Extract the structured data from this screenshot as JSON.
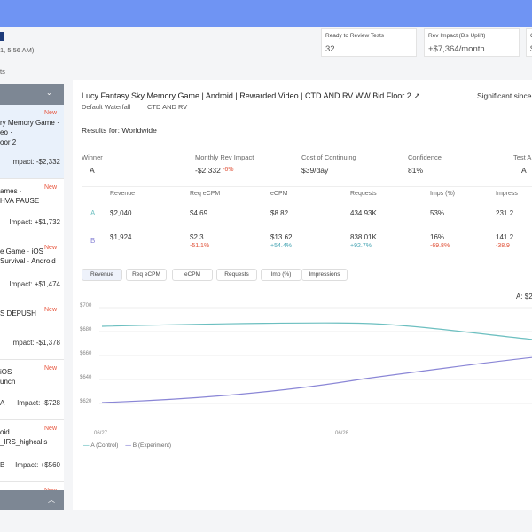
{
  "header": {
    "date": "1, 5:56 AM)",
    "tab": "ts"
  },
  "stats": [
    {
      "label": "Ready to Review Tests",
      "value": "32"
    },
    {
      "label": "Rev Impact (B's Uplift)",
      "value": "+$7,364/month"
    },
    {
      "label": "C",
      "value": "$"
    }
  ],
  "sidebar": {
    "items": [
      {
        "lines": [
          "ry Memory Game ·",
          "eo ·",
          "oor 2"
        ],
        "badge": "New",
        "impact": "Impact: -$2,332"
      },
      {
        "lines": [
          "ames ·",
          "HVA PAUSE"
        ],
        "badge": "New",
        "impact": "Impact: +$1,732"
      },
      {
        "lines": [
          "e Game · iOS",
          "Survival · Android"
        ],
        "badge": "New",
        "impact": "Impact: +$1,474"
      },
      {
        "lines": [
          "S DEPUSH"
        ],
        "badge": "New",
        "impact": "Impact: -$1,378"
      },
      {
        "lines": [
          "iOS",
          "unch"
        ],
        "badge": "New",
        "impact": "Impact: -$728",
        "prefix": "A"
      },
      {
        "lines": [
          "oid",
          "_IRS_highcalls"
        ],
        "badge": "New",
        "impact": "Impact: +$560",
        "prefix": "B"
      },
      {
        "lines": [],
        "badge": "New",
        "impact": null
      }
    ]
  },
  "main": {
    "title": "Lucy  Fantasy Sky Memory Game | Android | Rewarded Video | CTD AND RV WW Bid Floor 2",
    "significance": "Significant since",
    "tags": [
      "Default Waterfall",
      "CTD AND RV"
    ],
    "results_for": "Results for: Worldwide",
    "metrics": [
      {
        "label": "Winner",
        "value": "A"
      },
      {
        "label": "Monthly Rev Impact",
        "value": "-$2,332",
        "delta": "-6%"
      },
      {
        "label": "Cost of Continuing",
        "value": "$39/day"
      },
      {
        "label": "Confidence",
        "value": "81%"
      },
      {
        "label": "Test A",
        "value": "A"
      }
    ],
    "table": {
      "columns": [
        "Revenue",
        "Req eCPM",
        "eCPM",
        "Requests",
        "Imps (%)",
        "Impress"
      ],
      "rows": [
        {
          "variant": "A",
          "values": [
            "$2,040",
            "$4.69",
            "$8.82",
            "434.93K",
            "53%",
            "231.2"
          ],
          "deltas": []
        },
        {
          "variant": "B",
          "values": [
            "$1,924",
            "$2.3",
            "$13.62",
            "838.01K",
            "16%",
            "141.2"
          ],
          "deltas": [
            "",
            "-51.1%",
            "+54.4%",
            "+92.7%",
            "-69.8%",
            "-38.9"
          ]
        }
      ]
    },
    "chart_tabs": [
      "Revenue",
      "Req eCPM",
      "eCPM",
      "Requests",
      "Imp (%)",
      "Impressions"
    ],
    "chart_note": "A: $2",
    "chart": {
      "yticks": [
        "$700",
        "$680",
        "$660",
        "$640",
        "$620"
      ],
      "xticks": [
        "06/27",
        "06/28"
      ],
      "legend": [
        "A (Control)",
        "B (Experiment)"
      ]
    }
  }
}
